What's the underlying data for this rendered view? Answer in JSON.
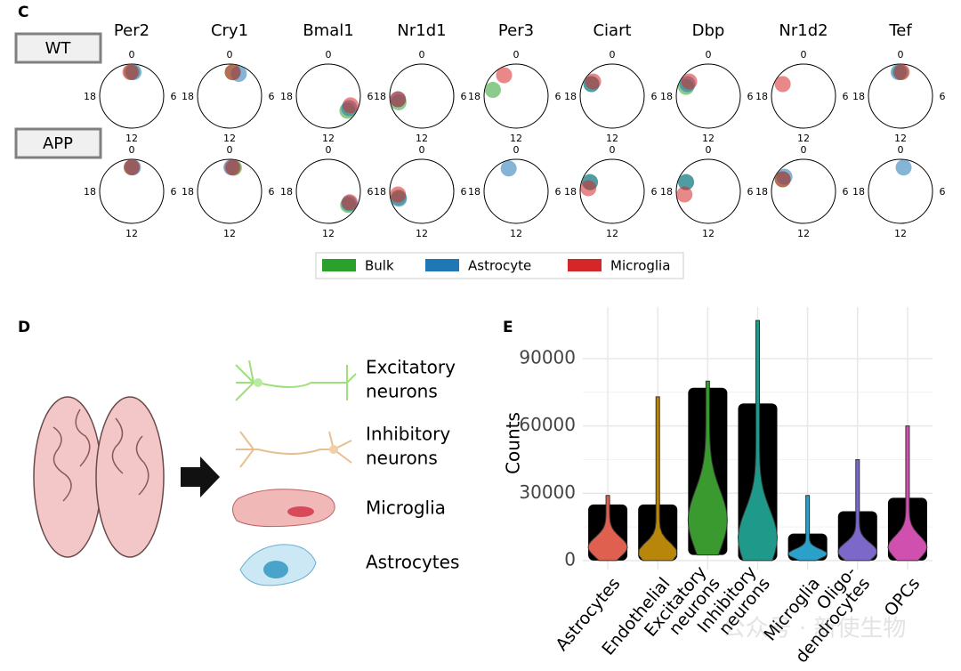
{
  "panel_c": {
    "label": "C",
    "genes": [
      "Per2",
      "Cry1",
      "Bmal1",
      "Nr1d1",
      "Per3",
      "Ciart",
      "Dbp",
      "Nr1d2",
      "Tef"
    ],
    "conditions": [
      "WT",
      "APP"
    ],
    "phase_lim": [
      0,
      24
    ],
    "phase_ticks": [
      0,
      6,
      12,
      18
    ],
    "series": [
      {
        "name": "Bulk",
        "color": "#2ca02c",
        "phases": [
          [
            0,
            0.5,
            8.5,
            17,
            19,
            20,
            19.5,
            null,
            0
          ],
          [
            0,
            0.7,
            8.3,
            17,
            null,
            19.5,
            19.5,
            20,
            null
          ]
        ]
      },
      {
        "name": "Astrocyte",
        "color": "#1f77b4",
        "phases": [
          [
            0.3,
            1.5,
            8,
            17.5,
            null,
            20,
            20,
            null,
            23.7
          ],
          [
            0.2,
            0.3,
            8,
            16.8,
            22.8,
            19.5,
            19.5,
            20.5,
            0.5
          ]
        ]
      },
      {
        "name": "Microglia",
        "color": "#d62728",
        "phases": [
          [
            23.8,
            0.5,
            7.5,
            17.5,
            22,
            20.5,
            20.5,
            20,
            0.2
          ],
          [
            0,
            0.5,
            7.8,
            17.5,
            null,
            18.5,
            17.5,
            20,
            null
          ]
        ]
      }
    ]
  },
  "panel_d": {
    "label": "D",
    "cell_types": [
      [
        "Excitatory",
        "neurons"
      ],
      [
        "Inhibitory",
        "neurons"
      ],
      [
        "Microglia"
      ],
      [
        "Astrocytes"
      ]
    ]
  },
  "chart_data": {
    "type": "violin",
    "panel_label": "E",
    "ylabel": "Counts",
    "categories": [
      [
        "Astrocytes"
      ],
      [
        "Endothelial"
      ],
      [
        "Excitatory",
        "neurons"
      ],
      [
        "Inhibitory",
        "neurons"
      ],
      [
        "Microglia"
      ],
      [
        "Oligo-",
        "dendrocytes"
      ],
      [
        "OPCs"
      ]
    ],
    "colors": [
      "#e0604f",
      "#b8860b",
      "#3a9a30",
      "#1f9a8a",
      "#2ba0c8",
      "#7b68c8",
      "#d050b0"
    ],
    "min": [
      0,
      0,
      2500,
      0,
      0,
      0,
      0
    ],
    "median": [
      6000,
      3500,
      18000,
      10000,
      3000,
      4000,
      6000
    ],
    "dense_max": [
      25000,
      25000,
      77000,
      70000,
      12000,
      22000,
      28000
    ],
    "max": [
      29000,
      73000,
      80000,
      107000,
      29000,
      45000,
      60000
    ],
    "ylim": [
      -4000,
      113000
    ],
    "yticks": [
      0,
      30000,
      60000,
      90000
    ],
    "grid": true
  },
  "watermark": "公众号 · 新使生物"
}
